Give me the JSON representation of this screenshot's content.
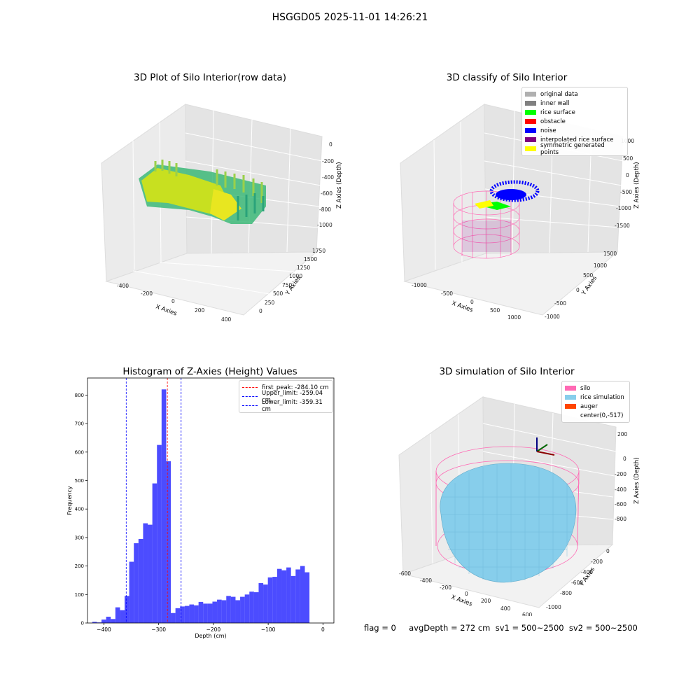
{
  "page": {
    "title": "HSGGD05 2025-11-01 14:26:21",
    "status_text": "flag = 0     avgDepth = 272 cm  sv1 = 500~2500  sv2 = 500~2500"
  },
  "panels": {
    "raw": {
      "title": "3D Plot of Silo Interior(row data)",
      "xlabel": "X Axies",
      "ylabel": "Y Axies",
      "zlabel": "Z Axies (Depth)",
      "x_ticks": [
        "-400",
        "-200",
        "0",
        "200",
        "400"
      ],
      "y_ticks": [
        "0",
        "250",
        "500",
        "750",
        "1000",
        "1250",
        "1500",
        "1750"
      ],
      "z_ticks": [
        "0",
        "-200",
        "-400",
        "-600",
        "-800",
        "-1000"
      ]
    },
    "classify": {
      "title": "3D classify of Silo Interior",
      "xlabel": "X Axies",
      "ylabel": "Y Axies",
      "zlabel": "Z Axies (Depth)",
      "x_ticks": [
        "-1000",
        "-500",
        "0",
        "500",
        "1000"
      ],
      "y_ticks": [
        "-1000",
        "-500",
        "0",
        "500",
        "1000",
        "1500"
      ],
      "z_ticks": [
        "1000",
        "500",
        "0",
        "-500",
        "-1000",
        "-1500"
      ],
      "legend": [
        {
          "label": "original data",
          "color": "#b0b0b0"
        },
        {
          "label": "inner wall",
          "color": "#808080"
        },
        {
          "label": "rice surface",
          "color": "#00ff00"
        },
        {
          "label": "obstacle",
          "color": "#ff0000"
        },
        {
          "label": "noise",
          "color": "#0000ff"
        },
        {
          "label": "interpolated rice surface",
          "color": "#800080"
        },
        {
          "label": "symmetric generated points",
          "color": "#ffff00"
        }
      ]
    },
    "simulation": {
      "title": "3D simulation of Silo Interior",
      "xlabel": "X Axies",
      "ylabel": "Y Axies",
      "zlabel": "Z Axies (Depth)",
      "x_ticks": [
        "-600",
        "-400",
        "-200",
        "0",
        "200",
        "400",
        "600"
      ],
      "y_ticks": [
        "0",
        "-200",
        "-400",
        "-600",
        "-800",
        "-1000"
      ],
      "z_ticks": [
        "200",
        "0",
        "-200",
        "-400",
        "-600",
        "-800"
      ],
      "legend": [
        {
          "label": "silo",
          "color": "#ff69b4"
        },
        {
          "label": "rice simulation",
          "color": "#87ceeb"
        },
        {
          "label": "auger",
          "color": "#ff4500"
        },
        {
          "label": "center(0,-517)",
          "color": ""
        }
      ]
    }
  },
  "chart_data": {
    "type": "bar",
    "title": "Histogram of Z-Axies (Height) Values",
    "xlabel": "Depth (cm)",
    "ylabel": "Frequency",
    "bar_color": "#0000ff",
    "bar_alpha": 0.7,
    "x_range": [
      -430,
      20
    ],
    "ylim": [
      0,
      860
    ],
    "x_ticks": [
      -400,
      -300,
      -200,
      -100,
      0
    ],
    "y_ticks": [
      0,
      100,
      200,
      300,
      400,
      500,
      600,
      700,
      800
    ],
    "bin_start": -421.3,
    "bin_width": 8.44,
    "values": [
      4,
      2,
      12,
      22,
      14,
      55,
      45,
      95,
      215,
      280,
      295,
      350,
      345,
      490,
      625,
      820,
      568,
      35,
      52,
      58,
      60,
      65,
      62,
      74,
      68,
      68,
      75,
      82,
      80,
      95,
      92,
      80,
      92,
      100,
      110,
      108,
      140,
      135,
      160,
      162,
      190,
      185,
      195,
      165,
      188,
      200,
      178,
      0
    ],
    "vlines": [
      {
        "label": "first_peak: -284.10 cm",
        "x": -284.1,
        "color": "#ff0000"
      },
      {
        "label": "Upper_limit: -259.04 cm",
        "x": -259.04,
        "color": "#0000ff"
      },
      {
        "label": "Lower_limit: -359.31 cm",
        "x": -359.31,
        "color": "#0000ff"
      }
    ],
    "grid": false,
    "legend_position": "top-right"
  }
}
